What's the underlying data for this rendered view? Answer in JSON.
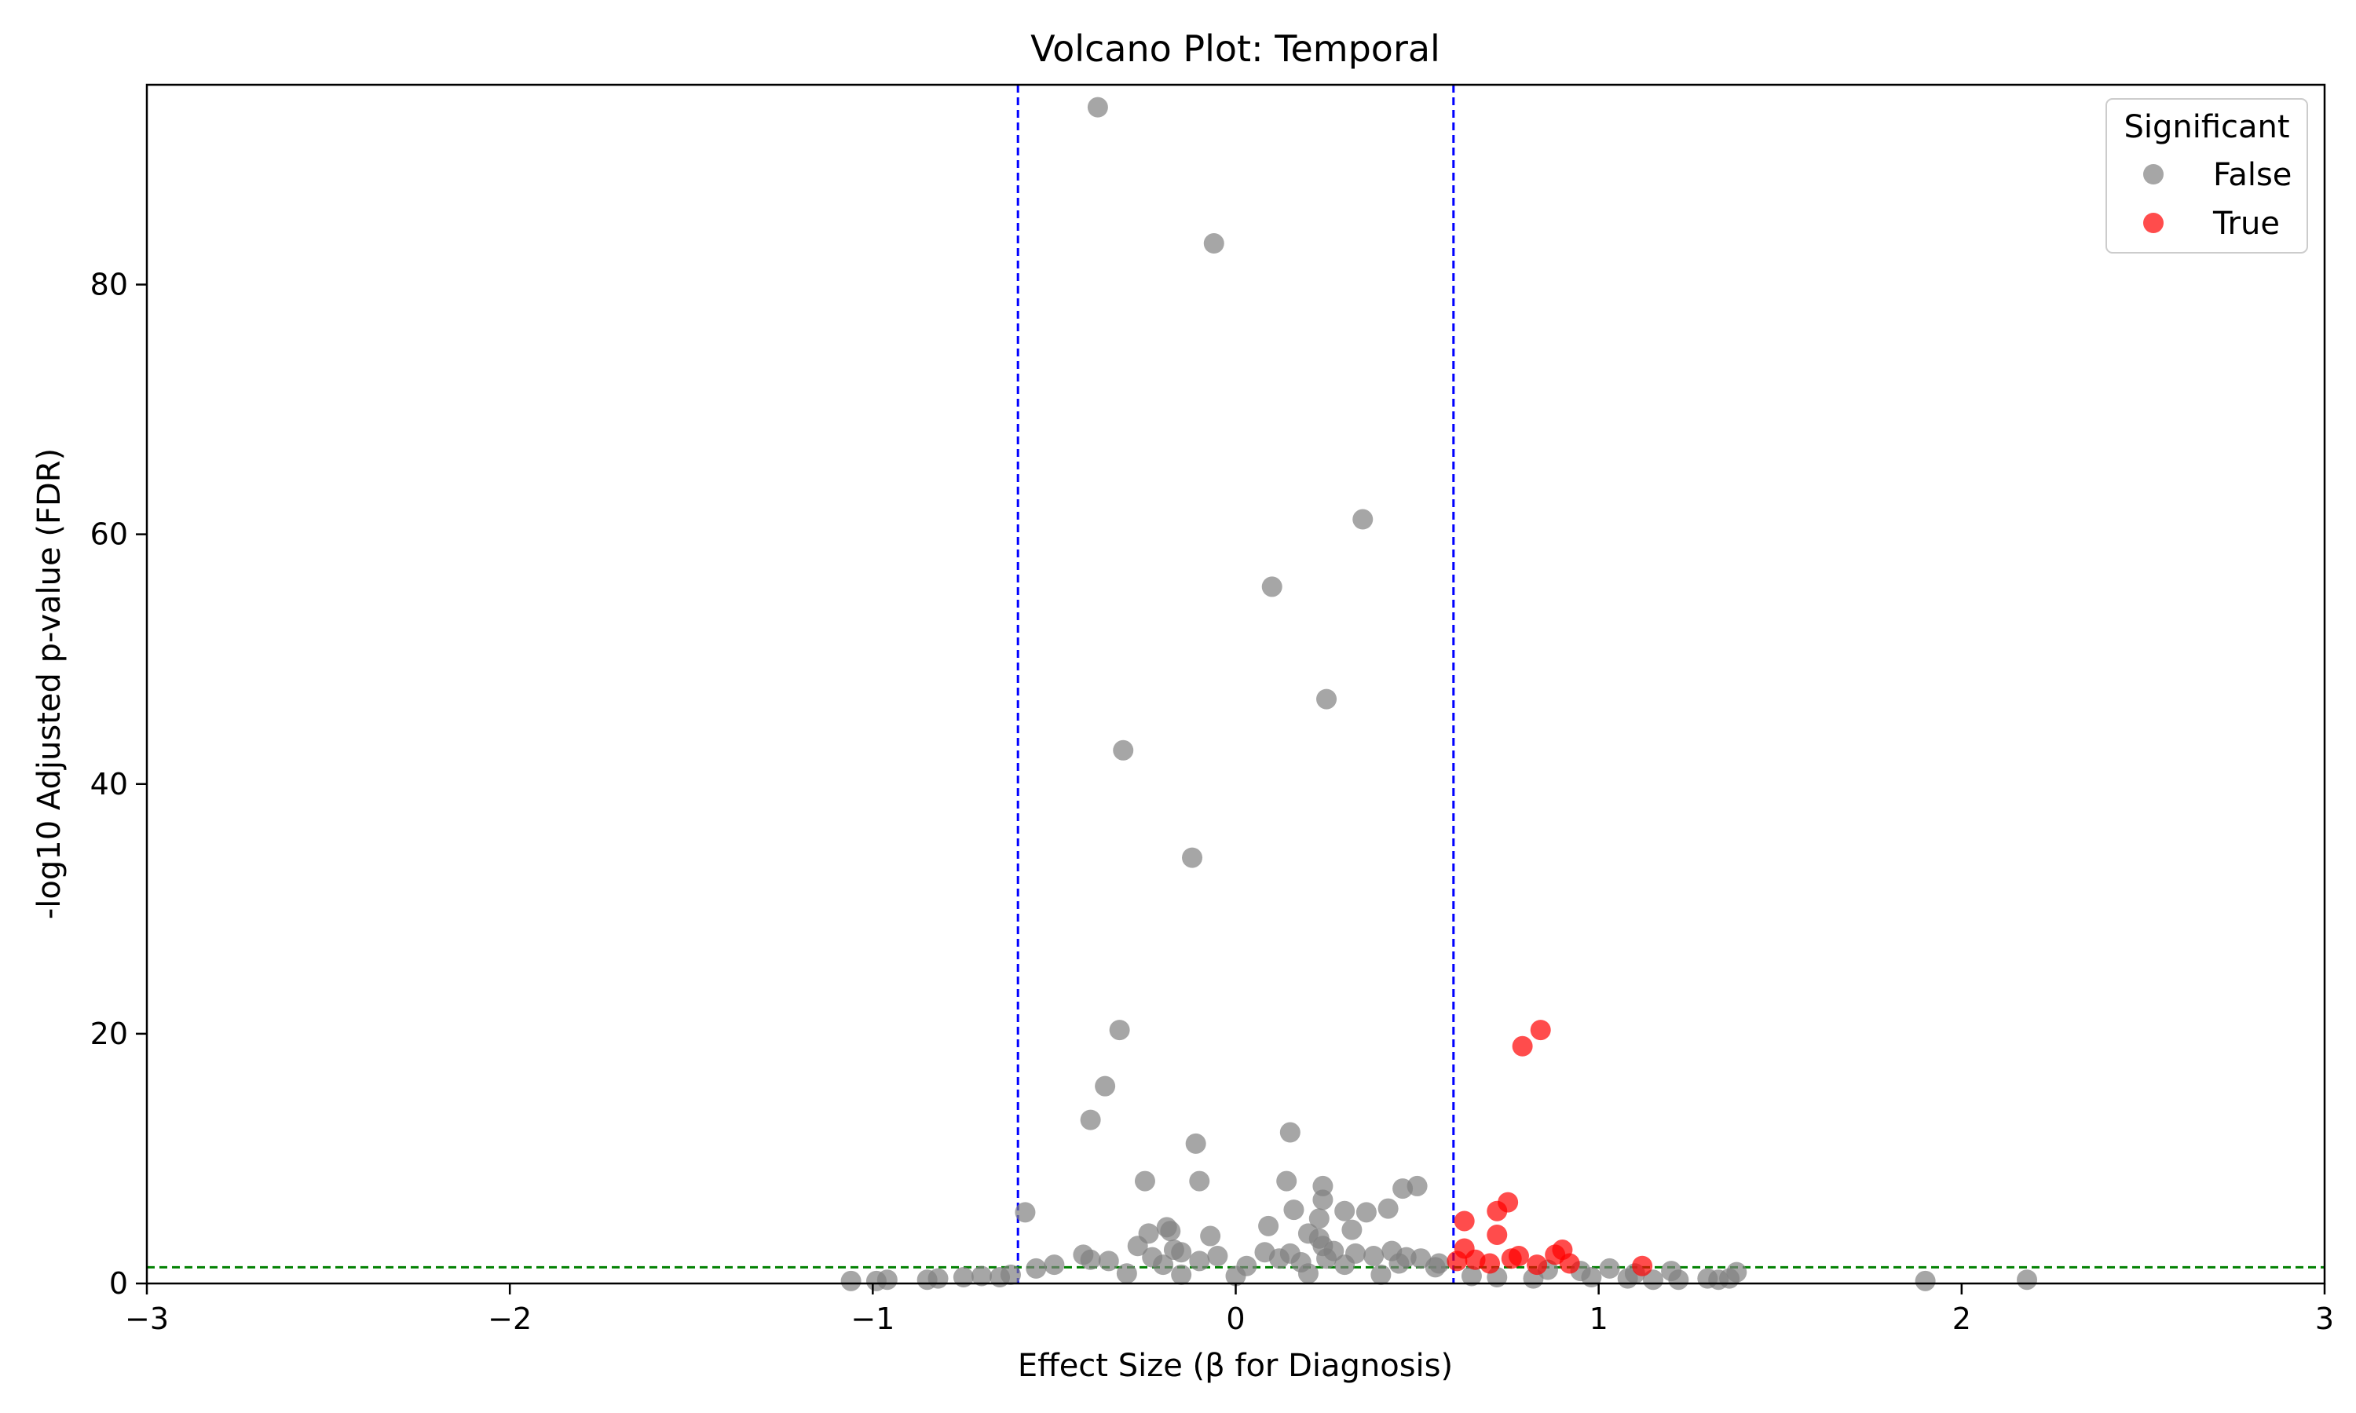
{
  "chart_data": {
    "type": "scatter",
    "title": "Volcano Plot: Temporal",
    "xlabel": "Effect Size (β for Diagnosis)",
    "ylabel": "-log10 Adjusted p-value (FDR)",
    "xlim": [
      -3,
      3
    ],
    "ylim": [
      0,
      96
    ],
    "x_ticks": [
      -3,
      -2,
      -1,
      0,
      1,
      2,
      3
    ],
    "x_tick_labels": [
      "−3",
      "−2",
      "−1",
      "0",
      "1",
      "2",
      "3"
    ],
    "y_ticks": [
      0,
      20,
      40,
      60,
      80
    ],
    "y_tick_labels": [
      "0",
      "20",
      "40",
      "60",
      "80"
    ],
    "grid": false,
    "legend": {
      "title": "Significant",
      "placement": "top-right"
    },
    "threshold_lines": {
      "vertical": [
        -0.6,
        0.6
      ],
      "vertical_color": "#0000ff",
      "horizontal": [
        1.3
      ],
      "horizontal_color": "#008000"
    },
    "series": [
      {
        "name": "False",
        "color": "#808080",
        "points": [
          [
            -0.38,
            94.2
          ],
          [
            -0.06,
            83.3
          ],
          [
            0.35,
            61.2
          ],
          [
            0.1,
            55.8
          ],
          [
            0.25,
            46.8
          ],
          [
            -0.31,
            42.7
          ],
          [
            -0.12,
            34.1
          ],
          [
            -0.32,
            20.3
          ],
          [
            -0.36,
            15.8
          ],
          [
            -0.4,
            13.1
          ],
          [
            0.15,
            12.1
          ],
          [
            -0.11,
            11.2
          ],
          [
            -0.25,
            8.2
          ],
          [
            -0.1,
            8.2
          ],
          [
            0.14,
            8.2
          ],
          [
            0.24,
            7.8
          ],
          [
            0.46,
            7.6
          ],
          [
            0.5,
            7.8
          ],
          [
            0.24,
            6.7
          ],
          [
            -0.58,
            5.7
          ],
          [
            0.16,
            5.9
          ],
          [
            0.3,
            5.8
          ],
          [
            0.36,
            5.7
          ],
          [
            0.42,
            6.0
          ],
          [
            0.23,
            5.2
          ],
          [
            0.09,
            4.6
          ],
          [
            0.32,
            4.3
          ],
          [
            -0.19,
            4.5
          ],
          [
            -0.18,
            4.2
          ],
          [
            -0.24,
            4.0
          ],
          [
            -0.07,
            3.8
          ],
          [
            0.2,
            4.0
          ],
          [
            0.23,
            3.6
          ],
          [
            -0.27,
            3.0
          ],
          [
            0.24,
            3.0
          ],
          [
            -0.17,
            2.7
          ],
          [
            -0.15,
            2.5
          ],
          [
            0.08,
            2.5
          ],
          [
            0.15,
            2.4
          ],
          [
            0.27,
            2.6
          ],
          [
            0.33,
            2.4
          ],
          [
            0.43,
            2.6
          ],
          [
            -0.42,
            2.3
          ],
          [
            -0.05,
            2.2
          ],
          [
            -0.23,
            2.1
          ],
          [
            0.12,
            2.0
          ],
          [
            0.25,
            2.0
          ],
          [
            0.38,
            2.2
          ],
          [
            0.47,
            2.1
          ],
          [
            0.51,
            2.0
          ],
          [
            -0.35,
            1.8
          ],
          [
            -0.4,
            1.9
          ],
          [
            -0.1,
            1.8
          ],
          [
            0.18,
            1.7
          ],
          [
            0.56,
            1.6
          ],
          [
            -0.5,
            1.5
          ],
          [
            -0.55,
            1.2
          ],
          [
            -0.2,
            1.5
          ],
          [
            0.03,
            1.4
          ],
          [
            0.3,
            1.5
          ],
          [
            0.45,
            1.6
          ],
          [
            0.55,
            1.3
          ],
          [
            1.03,
            1.2
          ],
          [
            1.2,
            1.0
          ],
          [
            1.38,
            0.9
          ],
          [
            1.1,
            0.8
          ],
          [
            0.95,
            1.0
          ],
          [
            0.86,
            1.1
          ],
          [
            -0.7,
            0.6
          ],
          [
            -0.65,
            0.5
          ],
          [
            -0.75,
            0.5
          ],
          [
            -0.82,
            0.4
          ],
          [
            -0.85,
            0.3
          ],
          [
            -1.06,
            0.2
          ],
          [
            -0.99,
            0.2
          ],
          [
            -0.96,
            0.3
          ],
          [
            -0.62,
            0.7
          ],
          [
            -0.3,
            0.8
          ],
          [
            -0.15,
            0.7
          ],
          [
            0.0,
            0.6
          ],
          [
            0.2,
            0.8
          ],
          [
            0.4,
            0.7
          ],
          [
            0.65,
            0.6
          ],
          [
            0.72,
            0.5
          ],
          [
            0.82,
            0.4
          ],
          [
            0.98,
            0.5
          ],
          [
            1.08,
            0.4
          ],
          [
            1.15,
            0.3
          ],
          [
            1.22,
            0.3
          ],
          [
            1.3,
            0.4
          ],
          [
            1.33,
            0.3
          ],
          [
            1.36,
            0.4
          ],
          [
            1.9,
            0.2
          ],
          [
            2.18,
            0.3
          ]
        ]
      },
      {
        "name": "True",
        "color": "#ff0000",
        "points": [
          [
            0.84,
            20.3
          ],
          [
            0.79,
            19.0
          ],
          [
            0.75,
            6.5
          ],
          [
            0.72,
            5.8
          ],
          [
            0.63,
            5.0
          ],
          [
            0.72,
            3.9
          ],
          [
            0.63,
            2.8
          ],
          [
            0.9,
            2.7
          ],
          [
            0.88,
            2.3
          ],
          [
            0.78,
            2.2
          ],
          [
            0.76,
            2.0
          ],
          [
            0.66,
            1.9
          ],
          [
            0.61,
            1.8
          ],
          [
            0.92,
            1.6
          ],
          [
            1.12,
            1.4
          ],
          [
            0.7,
            1.6
          ],
          [
            0.83,
            1.5
          ]
        ]
      }
    ]
  }
}
